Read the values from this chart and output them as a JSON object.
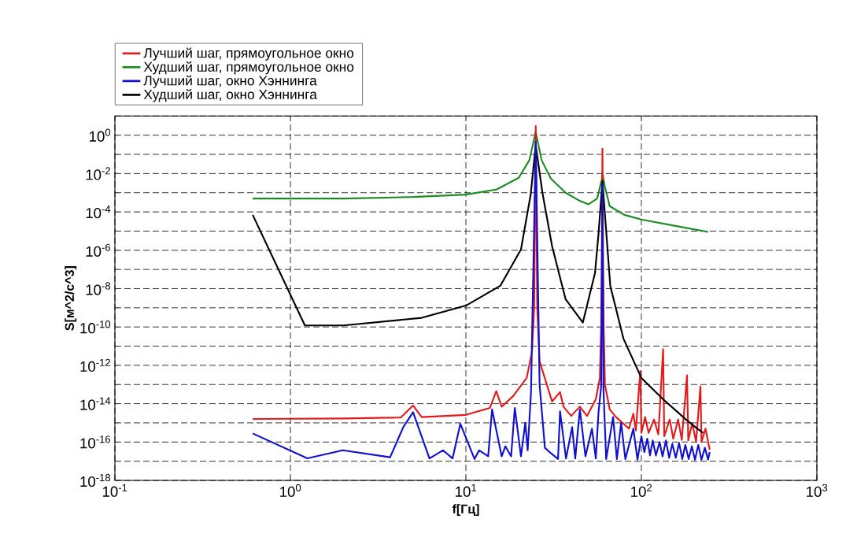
{
  "chart_data": {
    "type": "line",
    "xlabel": "f[Гц]",
    "ylabel": "S[м^2/с^3]",
    "log": "xy",
    "grid": true,
    "legend": "top left",
    "marker": "none",
    "line_style": "solid",
    "xlim": [
      0.1,
      1000
    ],
    "ylim": [
      1e-18,
      10
    ],
    "xticks": [
      {
        "value": 0.1,
        "label": "10$^{-1}$"
      },
      {
        "value": 1,
        "label": "10$^{0}$"
      },
      {
        "value": 10,
        "label": "10$^{1}$"
      },
      {
        "value": 100,
        "label": "10$^{2}$"
      },
      {
        "value": 1000,
        "label": "10$^{3}$"
      }
    ],
    "yticks": [
      {
        "value": 1e-18,
        "label": "10$^{-18}$"
      },
      {
        "value": 1e-17,
        "label": null
      },
      {
        "value": 1e-16,
        "label": "10$^{-16}$"
      },
      {
        "value": 1e-15,
        "label": null
      },
      {
        "value": 1e-14,
        "label": "10$^{-14}$"
      },
      {
        "value": 1e-13,
        "label": null
      },
      {
        "value": 1e-12,
        "label": "10$^{-12}$"
      },
      {
        "value": 1e-11,
        "label": null
      },
      {
        "value": 1e-10,
        "label": "10$^{-10}$"
      },
      {
        "value": 1e-09,
        "label": null
      },
      {
        "value": 1e-08,
        "label": "10$^{-8}$"
      },
      {
        "value": 1e-07,
        "label": null
      },
      {
        "value": 1e-06,
        "label": "10$^{-6}$"
      },
      {
        "value": 1e-05,
        "label": null
      },
      {
        "value": 0.0001,
        "label": "10$^{-4}$"
      },
      {
        "value": 0.001,
        "label": null
      },
      {
        "value": 0.01,
        "label": "10$^{-2}$"
      },
      {
        "value": 0.1,
        "label": null
      },
      {
        "value": 1,
        "label": "10$^{0}$"
      },
      {
        "value": 10,
        "label": null
      }
    ],
    "series": [
      {
        "name": "Лучший шаг, прямоугольное окно",
        "color": "#e31a1c",
        "x": [
          0.61,
          2,
          4.25,
          5.0,
          5.6,
          10,
          13.7,
          14.9,
          16,
          18.6,
          22.2,
          23.8,
          24.5,
          25,
          25.5,
          26.3,
          31,
          34.4,
          36,
          39.8,
          44.6,
          49,
          55,
          58,
          59,
          59.5,
          60,
          60.5,
          61,
          62,
          66,
          71.7,
          85,
          90,
          93,
          98.6,
          100,
          105,
          110,
          118,
          125,
          133,
          135,
          145,
          152,
          162,
          170,
          182,
          185,
          195,
          205,
          217,
          220,
          232,
          245
        ],
        "values": [
          1.6e-15,
          1.7e-15,
          1.9e-15,
          8e-15,
          2e-15,
          2.6e-15,
          6e-15,
          4.5e-14,
          7e-15,
          2.5e-14,
          2.2e-13,
          5e-12,
          1e-09,
          3,
          1e-09,
          1.6e-12,
          1.3e-14,
          4e-14,
          7e-15,
          2.3e-15,
          7e-15,
          2.3e-15,
          1.7e-14,
          2.2e-13,
          1e-10,
          3e-07,
          0.2,
          3e-07,
          1e-10,
          1e-13,
          5e-15,
          2e-15,
          5e-16,
          3e-15,
          4e-16,
          5e-13,
          3e-16,
          2e-15,
          3e-16,
          1.5e-15,
          2.5e-16,
          7e-12,
          2e-16,
          1.5e-15,
          1.5e-16,
          1.5e-15,
          1.3e-16,
          3e-13,
          1.2e-16,
          1e-15,
          1e-16,
          8e-14,
          1e-16,
          5e-16,
          4e-17
        ]
      },
      {
        "name": "Худший шаг, прямоугольное окно",
        "color": "#1e8b24",
        "x": [
          0.61,
          2,
          5,
          10,
          15,
          20,
          23,
          25,
          27,
          30.5,
          37,
          44,
          50,
          56,
          59.5,
          60,
          62,
          66,
          80,
          100,
          150,
          240
        ],
        "values": [
          0.0005,
          0.0005,
          0.0006,
          0.0008,
          0.0015,
          0.006,
          0.05,
          1.5,
          0.05,
          0.0055,
          0.001,
          0.0004,
          0.00025,
          0.0005,
          0.005,
          0.01,
          0.002,
          0.0002,
          7e-05,
          4e-05,
          2e-05,
          9e-06
        ]
      },
      {
        "name": "Лучший шаг, окно Хэннинга",
        "color": "#1010d0",
        "x": [
          0.61,
          1.25,
          1.99,
          3.7,
          4.4,
          5.0,
          6.2,
          7.4,
          8.4,
          9.3,
          11.2,
          11.9,
          13.4,
          14.1,
          16,
          16.8,
          18.1,
          19,
          20.6,
          21.8,
          22.5,
          23.5,
          25,
          26.3,
          28.2,
          30.7,
          33.5,
          34.4,
          37.2,
          40.3,
          42,
          44.6,
          48,
          52.3,
          55,
          57,
          59,
          60,
          60.8,
          63,
          69,
          72.5,
          76.7,
          81,
          90,
          95,
          100,
          104,
          108,
          112,
          116,
          121,
          127,
          132,
          138,
          144,
          150,
          157,
          164,
          171,
          178,
          186,
          194,
          202,
          211,
          220,
          230,
          240,
          245
        ],
        "values": [
          2.8e-16,
          1.4e-17,
          3.7e-17,
          1.6e-17,
          6e-16,
          3.6e-15,
          1.4e-17,
          3.7e-17,
          1.4e-17,
          9e-16,
          1.3e-17,
          3.7e-17,
          1.8e-17,
          5e-15,
          1.8e-17,
          6e-17,
          1.8e-17,
          6e-15,
          1.8e-17,
          1e-15,
          3.7e-17,
          4e-14,
          0.45,
          1e-13,
          5e-17,
          2.5e-17,
          1.3e-17,
          4e-15,
          1.4e-17,
          6e-16,
          1.4e-17,
          5e-15,
          1.8e-17,
          5e-16,
          1.4e-17,
          3.6e-15,
          8e-14,
          0.003,
          6e-14,
          1.3e-17,
          2e-15,
          1.3e-17,
          1e-15,
          1.3e-17,
          5e-16,
          1.2e-17,
          2e-16,
          3e-17,
          1.5e-16,
          2e-17,
          1.2e-16,
          2e-17,
          1e-16,
          1.8e-17,
          1.2e-16,
          1.5e-17,
          8e-17,
          1.5e-17,
          9e-17,
          1.3e-17,
          7e-17,
          1.3e-17,
          6e-17,
          1.2e-17,
          7e-17,
          1.2e-17,
          5e-17,
          1.2e-17,
          3e-17
        ]
      },
      {
        "name": "Худший шаг, окно Хэннинга",
        "color": "#000000",
        "x": [
          0.61,
          1.21,
          2,
          5.6,
          10,
          15.7,
          20.6,
          23.4,
          25,
          27.3,
          31,
          37,
          46.4,
          54.4,
          57,
          60,
          66.5,
          79,
          100,
          133,
          181,
          210,
          225
        ],
        "values": [
          7e-05,
          1.2e-10,
          1.2e-10,
          3e-10,
          1.3e-09,
          1.4e-08,
          1.1e-06,
          0.0008,
          0.3,
          0.001,
          1.6e-06,
          2.8e-09,
          1.7e-10,
          6.5e-08,
          7.4e-06,
          0.004,
          1.4e-08,
          2.5e-11,
          2.2e-13,
          1.7e-14,
          1.4e-15,
          4.7e-16,
          3e-16
        ]
      }
    ]
  }
}
